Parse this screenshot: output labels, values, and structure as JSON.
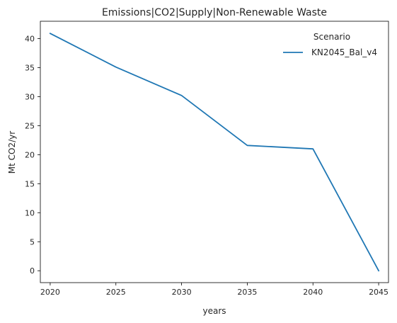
{
  "chart_data": {
    "type": "line",
    "title": "Emissions|CO2|Supply|Non-Renewable Waste",
    "xlabel": "years",
    "ylabel": "Mt CO2/yr",
    "x": [
      2020,
      2025,
      2030,
      2035,
      2040,
      2045
    ],
    "x_ticks": [
      2020,
      2025,
      2030,
      2035,
      2040,
      2045
    ],
    "y_ticks": [
      0,
      5,
      10,
      15,
      20,
      25,
      30,
      35,
      40
    ],
    "xlim": [
      2019.25,
      2045.75
    ],
    "ylim": [
      -2.05,
      43.0
    ],
    "grid": false,
    "legend": {
      "title": "Scenario",
      "placement": "top-right"
    },
    "series": [
      {
        "name": "KN2045_Bal_v4",
        "color": "#1f77b4",
        "values": [
          40.9,
          35.1,
          30.2,
          21.6,
          21.0,
          0.0
        ]
      }
    ]
  }
}
